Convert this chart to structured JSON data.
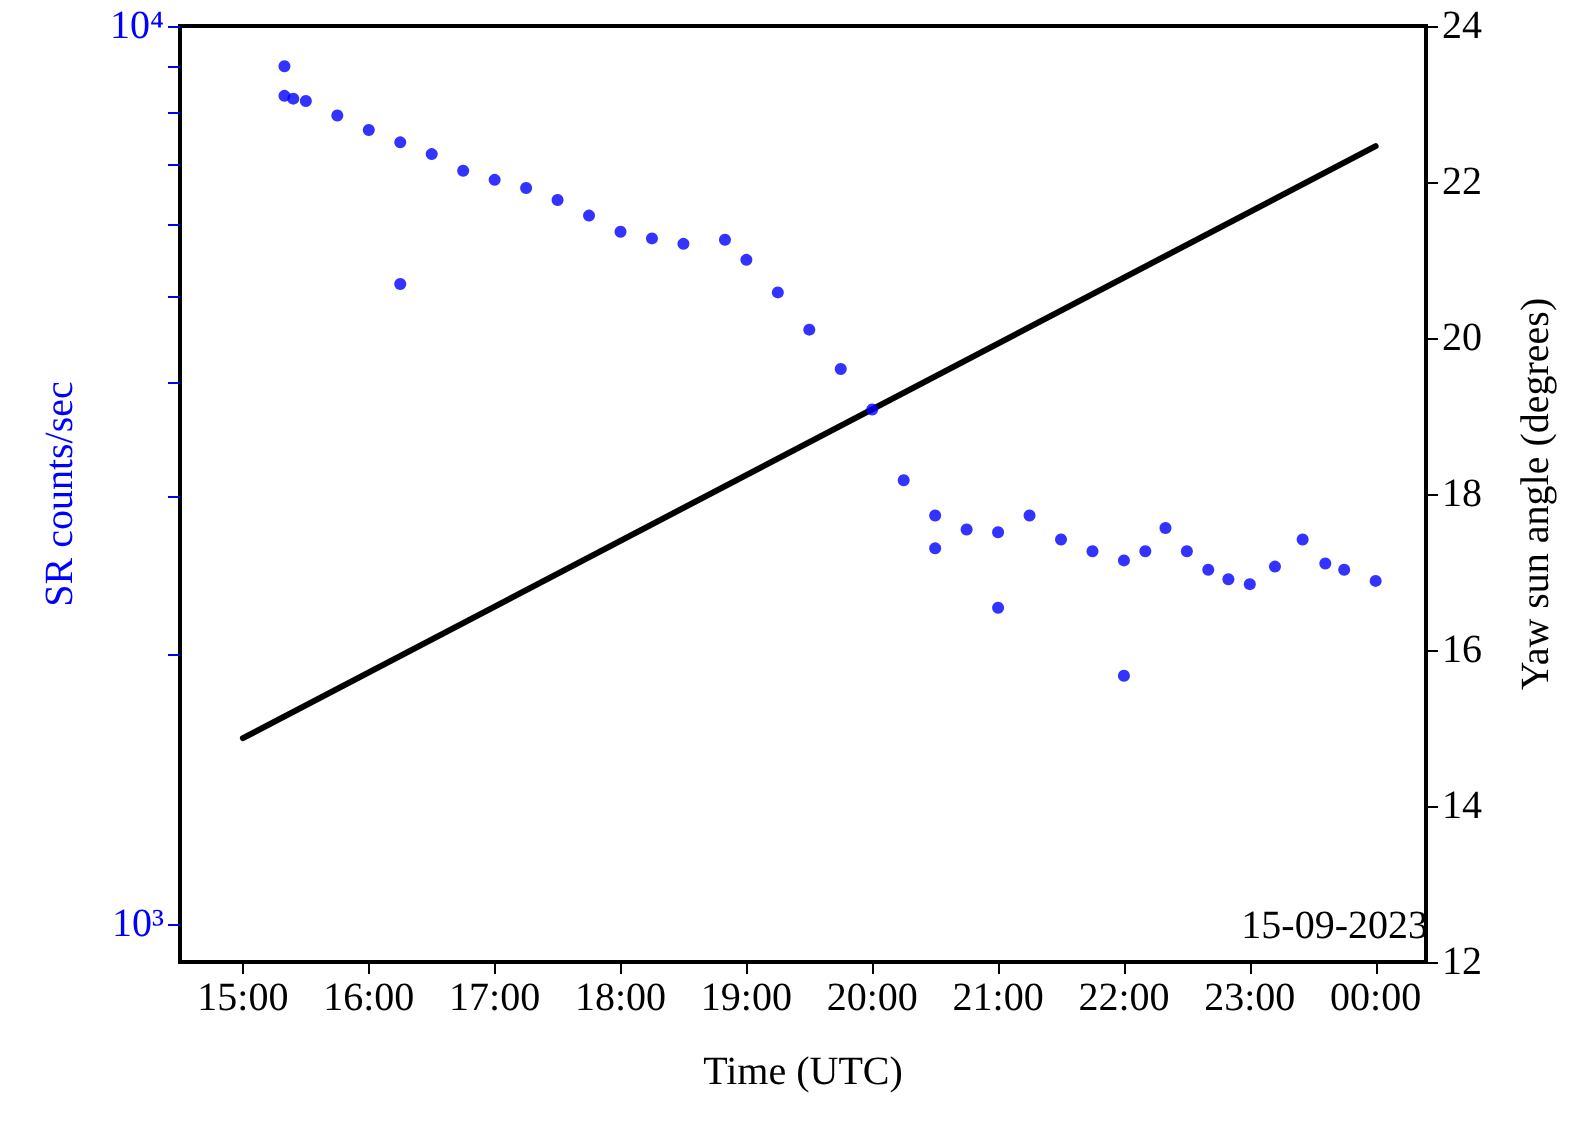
{
  "chart_data": {
    "type": "scatter",
    "xlabel": "Time (UTC)",
    "ylabel": "SR counts/sec",
    "y2label": "Yaw sun angle (degrees)",
    "annotations": [
      "15-09-2023"
    ],
    "log": "y",
    "xlim": [
      14.5,
      24.4
    ],
    "xticks": [
      {
        "value": 15,
        "label": "15:00"
      },
      {
        "value": 16,
        "label": "16:00"
      },
      {
        "value": 17,
        "label": "17:00"
      },
      {
        "value": 18,
        "label": "18:00"
      },
      {
        "value": 19,
        "label": "19:00"
      },
      {
        "value": 20,
        "label": "20:00"
      },
      {
        "value": 21,
        "label": "21:00"
      },
      {
        "value": 22,
        "label": "22:00"
      },
      {
        "value": 23,
        "label": "23:00"
      },
      {
        "value": 24,
        "label": "00:00"
      }
    ],
    "ylim": [
      907,
      10000
    ],
    "yticks": [
      {
        "value": 1000,
        "label": "10³"
      },
      {
        "value": 2000,
        "label": null
      },
      {
        "value": 3000,
        "label": null
      },
      {
        "value": 4000,
        "label": null
      },
      {
        "value": 5000,
        "label": null
      },
      {
        "value": 6000,
        "label": null
      },
      {
        "value": 7000,
        "label": null
      },
      {
        "value": 8000,
        "label": null
      },
      {
        "value": 9000,
        "label": null
      },
      {
        "value": 10000,
        "label": "10⁴"
      }
    ],
    "y2lim": [
      12,
      24
    ],
    "y2ticks": [
      12,
      14,
      16,
      18,
      20,
      22,
      24
    ],
    "grid": false,
    "series": [
      {
        "type": "scatter",
        "color": "#0000ff",
        "marker": "circle",
        "x": [
          15.33,
          15.4,
          15.5,
          15.75,
          16.0,
          16.25,
          16.5,
          16.75,
          17.0,
          17.25,
          17.5,
          17.75,
          18.0,
          18.25,
          18.5,
          18.83,
          19.0,
          19.25,
          19.5,
          19.75,
          20.0,
          20.25,
          20.5,
          20.75,
          21.0,
          21.25,
          21.5,
          21.75,
          22.0,
          22.17,
          22.33,
          22.5,
          22.67,
          22.83,
          23.0,
          23.2,
          23.42,
          23.6,
          23.75,
          24.0,
          15.33,
          16.25,
          20.5,
          21.0,
          22.0
        ],
        "values": [
          8360,
          8300,
          8250,
          7950,
          7660,
          7420,
          7200,
          6900,
          6740,
          6600,
          6400,
          6150,
          5900,
          5800,
          5720,
          5780,
          5490,
          5050,
          4590,
          4150,
          3740,
          3120,
          2850,
          2750,
          2730,
          2850,
          2680,
          2600,
          2540,
          2600,
          2760,
          2600,
          2480,
          2420,
          2390,
          2500,
          2680,
          2520,
          2480,
          2410,
          9020,
          5160,
          2620,
          2250,
          1890
        ]
      },
      {
        "type": "line",
        "axis": "y2",
        "color": "#000000",
        "marker": "none",
        "line_style": "solid",
        "x": [
          15,
          24
        ],
        "values": [
          14.87,
          22.46
        ]
      }
    ]
  }
}
